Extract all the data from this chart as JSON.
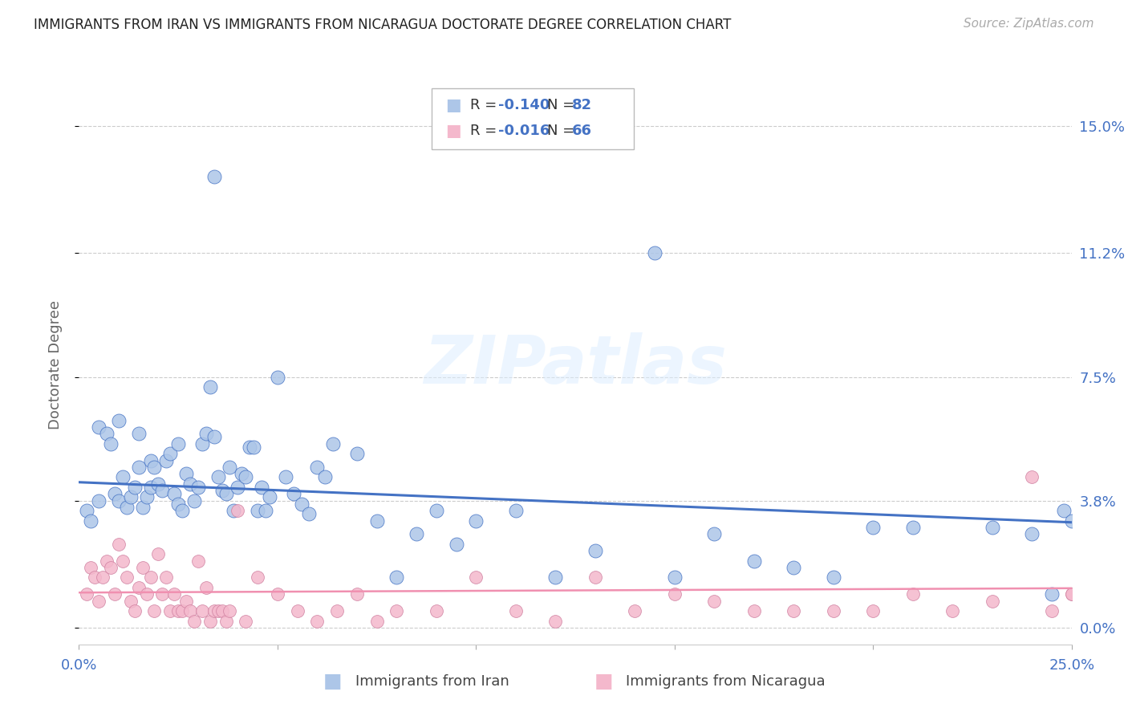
{
  "title": "IMMIGRANTS FROM IRAN VS IMMIGRANTS FROM NICARAGUA DOCTORATE DEGREE CORRELATION CHART",
  "source": "Source: ZipAtlas.com",
  "ylabel": "Doctorate Degree",
  "ytick_values": [
    0.0,
    3.8,
    7.5,
    11.2,
    15.0
  ],
  "ytick_labels": [
    "0.0%",
    "3.8%",
    "7.5%",
    "11.2%",
    "15.0%"
  ],
  "xlim": [
    0.0,
    25.0
  ],
  "ylim": [
    -0.5,
    16.2
  ],
  "R_iran": -0.14,
  "N_iran": 82,
  "R_nicaragua": -0.016,
  "N_nicaragua": 66,
  "color_iran": "#adc6e8",
  "color_nicaragua": "#f4b8cc",
  "color_iran_line": "#4472c4",
  "color_nicaragua_line": "#f090b0",
  "color_axis_labels": "#4472c4",
  "iran_line_y0": 4.35,
  "iran_line_y1": 3.15,
  "nicaragua_line_y0": 1.05,
  "nicaragua_line_y1": 1.18,
  "iran_x": [
    0.2,
    0.3,
    0.5,
    0.5,
    0.7,
    0.8,
    0.9,
    1.0,
    1.0,
    1.1,
    1.2,
    1.3,
    1.4,
    1.5,
    1.5,
    1.6,
    1.7,
    1.8,
    1.8,
    1.9,
    2.0,
    2.1,
    2.2,
    2.3,
    2.4,
    2.5,
    2.5,
    2.6,
    2.7,
    2.8,
    2.9,
    3.0,
    3.1,
    3.2,
    3.3,
    3.4,
    3.4,
    3.5,
    3.6,
    3.7,
    3.8,
    3.9,
    4.0,
    4.1,
    4.2,
    4.3,
    4.4,
    4.5,
    4.6,
    4.7,
    4.8,
    5.0,
    5.2,
    5.4,
    5.6,
    5.8,
    6.0,
    6.2,
    6.4,
    7.0,
    7.5,
    8.0,
    8.5,
    9.0,
    9.5,
    10.0,
    11.0,
    12.0,
    13.0,
    14.5,
    15.0,
    16.0,
    17.0,
    18.0,
    19.0,
    20.0,
    21.0,
    23.0,
    24.0,
    24.5,
    24.8,
    25.0
  ],
  "iran_y": [
    3.5,
    3.2,
    3.8,
    6.0,
    5.8,
    5.5,
    4.0,
    3.8,
    6.2,
    4.5,
    3.6,
    3.9,
    4.2,
    4.8,
    5.8,
    3.6,
    3.9,
    4.2,
    5.0,
    4.8,
    4.3,
    4.1,
    5.0,
    5.2,
    4.0,
    3.7,
    5.5,
    3.5,
    4.6,
    4.3,
    3.8,
    4.2,
    5.5,
    5.8,
    7.2,
    13.5,
    5.7,
    4.5,
    4.1,
    4.0,
    4.8,
    3.5,
    4.2,
    4.6,
    4.5,
    5.4,
    5.4,
    3.5,
    4.2,
    3.5,
    3.9,
    7.5,
    4.5,
    4.0,
    3.7,
    3.4,
    4.8,
    4.5,
    5.5,
    5.2,
    3.2,
    1.5,
    2.8,
    3.5,
    2.5,
    3.2,
    3.5,
    1.5,
    2.3,
    11.2,
    1.5,
    2.8,
    2.0,
    1.8,
    1.5,
    3.0,
    3.0,
    3.0,
    2.8,
    1.0,
    3.5,
    3.2
  ],
  "nicaragua_x": [
    0.2,
    0.3,
    0.4,
    0.5,
    0.6,
    0.7,
    0.8,
    0.9,
    1.0,
    1.1,
    1.2,
    1.3,
    1.4,
    1.5,
    1.6,
    1.7,
    1.8,
    1.9,
    2.0,
    2.1,
    2.2,
    2.3,
    2.4,
    2.5,
    2.6,
    2.7,
    2.8,
    2.9,
    3.0,
    3.1,
    3.2,
    3.3,
    3.4,
    3.5,
    3.6,
    3.7,
    3.8,
    4.0,
    4.2,
    4.5,
    5.0,
    5.5,
    6.0,
    6.5,
    7.0,
    7.5,
    8.0,
    9.0,
    10.0,
    11.0,
    12.0,
    13.0,
    14.0,
    15.0,
    16.0,
    17.0,
    18.0,
    19.0,
    20.0,
    21.0,
    22.0,
    23.0,
    24.0,
    24.5,
    25.0,
    25.0
  ],
  "nicaragua_y": [
    1.0,
    1.8,
    1.5,
    0.8,
    1.5,
    2.0,
    1.8,
    1.0,
    2.5,
    2.0,
    1.5,
    0.8,
    0.5,
    1.2,
    1.8,
    1.0,
    1.5,
    0.5,
    2.2,
    1.0,
    1.5,
    0.5,
    1.0,
    0.5,
    0.5,
    0.8,
    0.5,
    0.2,
    2.0,
    0.5,
    1.2,
    0.2,
    0.5,
    0.5,
    0.5,
    0.2,
    0.5,
    3.5,
    0.2,
    1.5,
    1.0,
    0.5,
    0.2,
    0.5,
    1.0,
    0.2,
    0.5,
    0.5,
    1.5,
    0.5,
    0.2,
    1.5,
    0.5,
    1.0,
    0.8,
    0.5,
    0.5,
    0.5,
    0.5,
    1.0,
    0.5,
    0.8,
    4.5,
    0.5,
    1.0,
    1.0
  ]
}
